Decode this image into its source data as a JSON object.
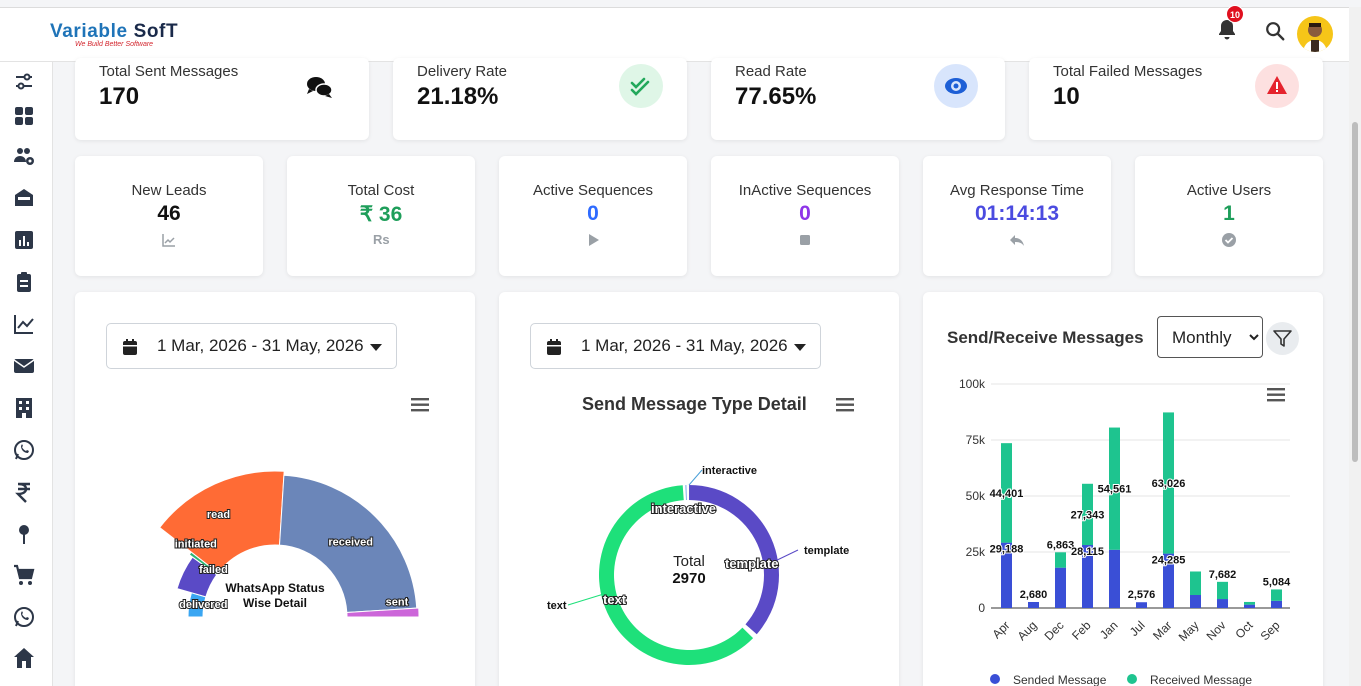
{
  "brand": {
    "name_blue": "Variable ",
    "name_dark": "SofT",
    "tagline": "We Build Better Software"
  },
  "header": {
    "notification_count": "10"
  },
  "stats": [
    {
      "label": "Total Sent Messages",
      "value": "170"
    },
    {
      "label": "Delivery Rate",
      "value": "21.18%"
    },
    {
      "label": "Read Rate",
      "value": "77.65%"
    },
    {
      "label": "Total Failed Messages",
      "value": "10"
    }
  ],
  "metrics": [
    {
      "label": "New Leads",
      "value": "46",
      "icon": "trend-icon",
      "color": "#111111"
    },
    {
      "label": "Total Cost",
      "value": "₹ 36",
      "icon": "rupee-icon",
      "icon_text": "Rs",
      "color": "#1e9e5a"
    },
    {
      "label": "Active Sequences",
      "value": "0",
      "icon": "play-icon",
      "color": "#2f6bff"
    },
    {
      "label": "InActive Sequences",
      "value": "0",
      "icon": "stop-icon",
      "color": "#8e35e8"
    },
    {
      "label": "Avg Response Time",
      "value": "01:14:13",
      "icon": "reply-icon",
      "color": "#4b4be0"
    },
    {
      "label": "Active Users",
      "value": "1",
      "icon": "check-circle-icon",
      "color": "#1e9e5a"
    }
  ],
  "panels": {
    "date_range_1": "1 Mar, 2026 - 31 May, 2026",
    "date_range_2": "1 Mar, 2026 - 31 May, 2026",
    "donut_title": "Send Message Type Detail",
    "bar_title": "Send/Receive Messages",
    "period_options": [
      "Monthly"
    ],
    "period_selected": "Monthly"
  },
  "chart_data": [
    {
      "type": "pie",
      "title": "WhatsApp Status Wise Detail",
      "slices": [
        {
          "name": "delivered",
          "value": 9,
          "color": "#3aa6f2"
        },
        {
          "name": "failed",
          "value": 11,
          "color": "#5a4ac6"
        },
        {
          "name": "initiated",
          "value": 1,
          "color": "#2bb673"
        },
        {
          "name": "read",
          "value": 31,
          "color": "#ff6b35"
        },
        {
          "name": "received",
          "value": 46,
          "color": "#6b86b9"
        },
        {
          "name": "sent",
          "value": 2,
          "color": "#cc66d9"
        }
      ]
    },
    {
      "type": "pie",
      "title": "Send Message Type Detail",
      "center_label": "Total",
      "total": "2970",
      "slices": [
        {
          "name": "interactive",
          "value": 5,
          "color": "#6aa4e8"
        },
        {
          "name": "template",
          "value": 1110,
          "color": "#5a4ac6"
        },
        {
          "name": "text",
          "value": 1855,
          "color": "#1ee07a"
        }
      ]
    },
    {
      "type": "bar",
      "title": "Send/Receive Messages",
      "categories": [
        "Apr",
        "Aug",
        "Dec",
        "Feb",
        "Jan",
        "Jul",
        "Mar",
        "May",
        "Nov",
        "Oct",
        "Sep"
      ],
      "series": [
        {
          "name": "Sended Message",
          "color": "#3a4fd6",
          "values": [
            29188,
            2680,
            18000,
            28115,
            26000,
            2576,
            24285,
            5800,
            4000,
            1500,
            3200
          ]
        },
        {
          "name": "Received Message",
          "color": "#1ec48f",
          "values": [
            44401,
            0,
            6863,
            27343,
            54561,
            0,
            63026,
            10500,
            7682,
            1200,
            5084
          ]
        }
      ],
      "labels": [
        {
          "category": "Apr",
          "text": "29,188",
          "series": 0
        },
        {
          "category": "Apr",
          "text": "44,401",
          "series": 1
        },
        {
          "category": "Aug",
          "text": "2,680",
          "series": 0
        },
        {
          "category": "Dec",
          "text": "6,863",
          "series": 1
        },
        {
          "category": "Feb",
          "text": "28,115",
          "series": 0
        },
        {
          "category": "Feb",
          "text": "27,343",
          "series": 1
        },
        {
          "category": "Jan",
          "text": "54,561",
          "series": 1
        },
        {
          "category": "Jul",
          "text": "2,576",
          "series": 0
        },
        {
          "category": "Mar",
          "text": "24,285",
          "series": 0
        },
        {
          "category": "Mar",
          "text": "63,026",
          "series": 1
        },
        {
          "category": "Nov",
          "text": "7,682",
          "series": 1
        },
        {
          "category": "Sep",
          "text": "5,084",
          "series": 1
        }
      ],
      "yticks": [
        "100k",
        "75k",
        "50k",
        "25k",
        "0"
      ],
      "ylim": [
        0,
        100000
      ],
      "legend_position": "bottom"
    }
  ]
}
